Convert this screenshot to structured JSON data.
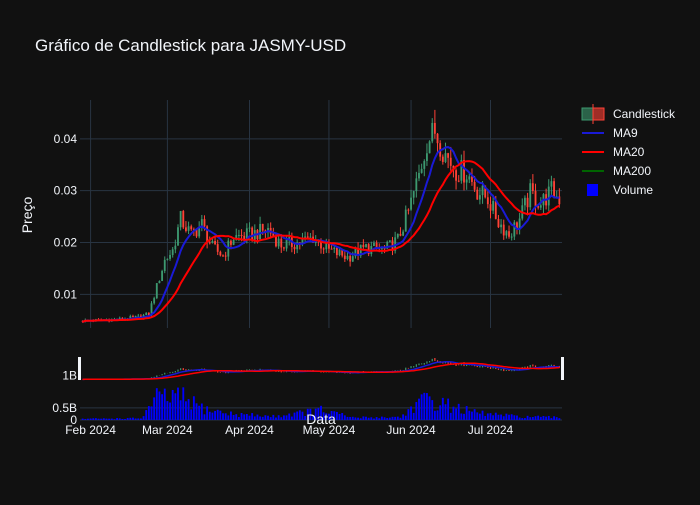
{
  "chart_data": {
    "type": "candlestick",
    "title": "Gráfico de Candlestick para JASMY-USD",
    "ylabel": "Preço",
    "xlabel": "Data",
    "ylim": [
      0.0035,
      0.0475
    ],
    "volume_ylim": [
      0,
      1.15
    ],
    "xrange": [
      "2024-01-28",
      "2024-07-28"
    ],
    "yticks": [
      {
        "value": 0.01,
        "label": "0.01"
      },
      {
        "value": 0.02,
        "label": "0.02"
      },
      {
        "value": 0.03,
        "label": "0.03"
      },
      {
        "value": 0.04,
        "label": "0.04"
      }
    ],
    "volume_yticks": [
      {
        "value": 0,
        "label": "0"
      },
      {
        "value": 0.5,
        "label": "0.5B"
      },
      {
        "value": 1,
        "label": "1B"
      }
    ],
    "xticks": [
      {
        "date": "2024-02-01",
        "label": "Feb 2024"
      },
      {
        "date": "2024-03-01",
        "label": "Mar 2024"
      },
      {
        "date": "2024-04-01",
        "label": "Apr 2024"
      },
      {
        "date": "2024-05-01",
        "label": "May 2024"
      },
      {
        "date": "2024-06-01",
        "label": "Jun 2024"
      },
      {
        "date": "2024-07-01",
        "label": "Jul 2024"
      }
    ],
    "price_anchors": [
      [
        "2024-01-29",
        0.0049
      ],
      [
        "2024-02-05",
        0.005
      ],
      [
        "2024-02-12",
        0.0052
      ],
      [
        "2024-02-19",
        0.0056
      ],
      [
        "2024-02-23",
        0.0062
      ],
      [
        "2024-02-26",
        0.0115
      ],
      [
        "2024-02-29",
        0.0165
      ],
      [
        "2024-03-03",
        0.0185
      ],
      [
        "2024-03-06",
        0.0245
      ],
      [
        "2024-03-10",
        0.0215
      ],
      [
        "2024-03-14",
        0.0235
      ],
      [
        "2024-03-18",
        0.019
      ],
      [
        "2024-03-22",
        0.0175
      ],
      [
        "2024-03-26",
        0.021
      ],
      [
        "2024-04-01",
        0.0215
      ],
      [
        "2024-04-08",
        0.0225
      ],
      [
        "2024-04-13",
        0.0195
      ],
      [
        "2024-04-20",
        0.02
      ],
      [
        "2024-04-25",
        0.021
      ],
      [
        "2024-05-01",
        0.0185
      ],
      [
        "2024-05-08",
        0.0172
      ],
      [
        "2024-05-15",
        0.019
      ],
      [
        "2024-05-22",
        0.0185
      ],
      [
        "2024-05-27",
        0.0205
      ],
      [
        "2024-05-31",
        0.026
      ],
      [
        "2024-06-04",
        0.033
      ],
      [
        "2024-06-07",
        0.0395
      ],
      [
        "2024-06-10",
        0.0415
      ],
      [
        "2024-06-14",
        0.037
      ],
      [
        "2024-06-18",
        0.034
      ],
      [
        "2024-06-22",
        0.0335
      ],
      [
        "2024-06-26",
        0.03
      ],
      [
        "2024-06-30",
        0.0285
      ],
      [
        "2024-07-04",
        0.024
      ],
      [
        "2024-07-08",
        0.0215
      ],
      [
        "2024-07-12",
        0.0245
      ],
      [
        "2024-07-16",
        0.0295
      ],
      [
        "2024-07-20",
        0.0275
      ],
      [
        "2024-07-24",
        0.03
      ],
      [
        "2024-07-27",
        0.0285
      ]
    ],
    "volume_anchors": [
      [
        "2024-01-29",
        0.05
      ],
      [
        "2024-02-20",
        0.07
      ],
      [
        "2024-02-26",
        0.9
      ],
      [
        "2024-03-06",
        0.95
      ],
      [
        "2024-03-15",
        0.45
      ],
      [
        "2024-03-25",
        0.25
      ],
      [
        "2024-04-10",
        0.15
      ],
      [
        "2024-04-28",
        0.4
      ],
      [
        "2024-05-10",
        0.1
      ],
      [
        "2024-05-28",
        0.12
      ],
      [
        "2024-06-05",
        0.8
      ],
      [
        "2024-06-12",
        0.7
      ],
      [
        "2024-06-25",
        0.3
      ],
      [
        "2024-07-10",
        0.15
      ],
      [
        "2024-07-27",
        0.1
      ]
    ],
    "series": [
      {
        "name": "Candlestick",
        "up_color": "#3d9970",
        "down_color": "#ff4136"
      },
      {
        "name": "MA9",
        "color": "#1a1ad6"
      },
      {
        "name": "MA20",
        "color": "#ff0000"
      },
      {
        "name": "MA200",
        "color": "#006400"
      },
      {
        "name": "Volume",
        "color": "#0000ff"
      }
    ],
    "legend_position": "top-right",
    "grid": true
  }
}
